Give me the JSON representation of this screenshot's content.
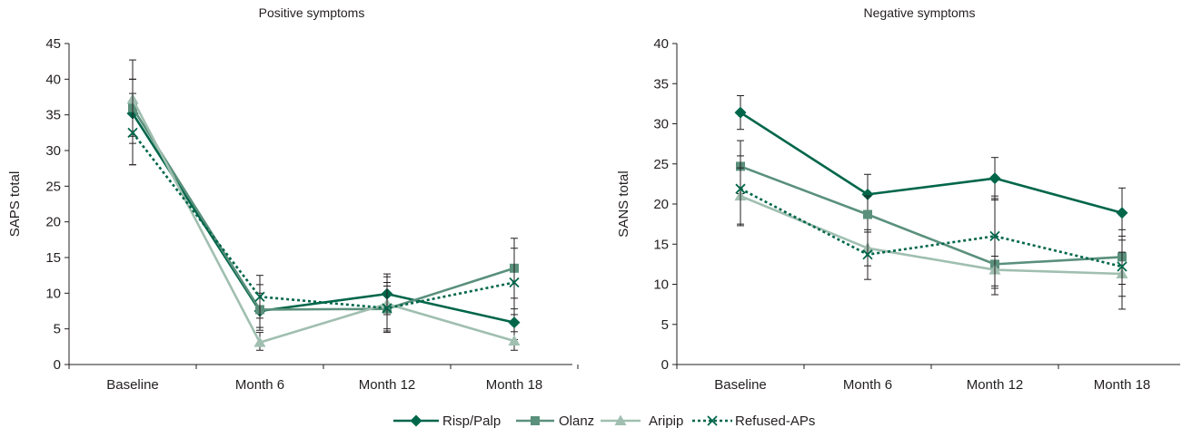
{
  "chart_data": [
    {
      "type": "line",
      "title": "Positive symptoms",
      "ylabel": "SAPS total",
      "xlabel": "",
      "categories": [
        "Baseline",
        "Month 6",
        "Month 12",
        "Month 18"
      ],
      "ylim": [
        0,
        45
      ],
      "yticks": [
        0,
        5,
        10,
        15,
        20,
        25,
        30,
        35,
        40,
        45
      ],
      "series": [
        {
          "name": "Risp/Palp",
          "values": [
            35.2,
            7.5,
            9.9,
            5.9
          ],
          "err_low": [
            28.0,
            5.2,
            7.0,
            3.5
          ],
          "err_high": [
            40.0,
            10.0,
            12.7,
            7.8
          ]
        },
        {
          "name": "Olanz",
          "values": [
            36.0,
            7.7,
            7.8,
            13.5
          ],
          "err_low": [
            31.0,
            4.8,
            4.7,
            9.3
          ],
          "err_high": [
            42.7,
            11.2,
            12.3,
            17.7
          ]
        },
        {
          "name": "Aripip",
          "values": [
            37.2,
            3.1,
            8.5,
            3.3
          ],
          "err_low": [
            32.0,
            2.0,
            5.0,
            2.0
          ],
          "err_high": [
            40.0,
            4.5,
            11.0,
            4.6
          ]
        },
        {
          "name": "Refused-APs",
          "values": [
            32.5,
            9.5,
            7.9,
            11.5
          ],
          "err_low": [
            28.0,
            6.5,
            4.5,
            7.0
          ],
          "err_high": [
            38.0,
            12.5,
            11.5,
            16.3
          ]
        }
      ]
    },
    {
      "type": "line",
      "title": "Negative symptoms",
      "ylabel": "SANS total",
      "xlabel": "",
      "categories": [
        "Baseline",
        "Month 6",
        "Month 12",
        "Month 18"
      ],
      "ylim": [
        0,
        40
      ],
      "yticks": [
        0,
        5,
        10,
        15,
        20,
        25,
        30,
        35,
        40
      ],
      "series": [
        {
          "name": "Risp/Palp",
          "values": [
            31.4,
            21.2,
            23.2,
            18.9
          ],
          "err_low": [
            29.3,
            18.7,
            20.7,
            16.0
          ],
          "err_high": [
            33.5,
            23.7,
            25.8,
            22.0
          ]
        },
        {
          "name": "Olanz",
          "values": [
            24.7,
            18.7,
            12.5,
            13.4
          ],
          "err_low": [
            21.3,
            16.5,
            9.8,
            10.0
          ],
          "err_high": [
            27.9,
            21.0,
            20.5,
            16.8
          ]
        },
        {
          "name": "Aripip",
          "values": [
            21.0,
            14.5,
            11.8,
            11.3
          ],
          "err_low": [
            17.3,
            12.3,
            9.5,
            8.5
          ],
          "err_high": [
            24.5,
            16.5,
            13.5,
            14.0
          ]
        },
        {
          "name": "Refused-APs",
          "values": [
            21.9,
            13.7,
            16.0,
            12.2
          ],
          "err_low": [
            17.5,
            10.6,
            8.7,
            6.9
          ],
          "err_high": [
            26.0,
            16.8,
            21.0,
            15.5
          ]
        }
      ]
    }
  ],
  "styles": {
    "Risp/Palp": {
      "color": "#00664a",
      "marker": "diamond",
      "dash": "solid"
    },
    "Olanz": {
      "color": "#5a907c",
      "marker": "square",
      "dash": "solid"
    },
    "Aripip": {
      "color": "#a0bfb0",
      "marker": "triangle",
      "dash": "solid"
    },
    "Refused-APs": {
      "color": "#00664a",
      "marker": "x",
      "dash": "dotted"
    }
  },
  "legend": [
    {
      "label": "Risp/Palp"
    },
    {
      "label": "Olanz"
    },
    {
      "label": "Aripip"
    },
    {
      "label": "Refused-APs"
    }
  ]
}
